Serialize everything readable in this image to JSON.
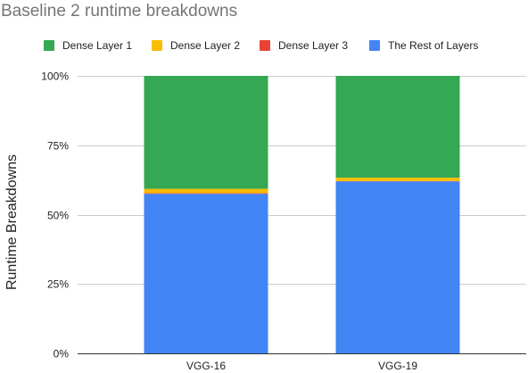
{
  "chart_data": {
    "type": "bar",
    "stacked": true,
    "title": "Baseline 2 runtime breakdowns",
    "xlabel": "",
    "ylabel": "Runtime Breakdowns",
    "categories": [
      "VGG-16",
      "VGG-19"
    ],
    "ylim": [
      0,
      100
    ],
    "yticks": [
      "0%",
      "25%",
      "50%",
      "75%",
      "100%"
    ],
    "grid": true,
    "legend_position": "top",
    "series": [
      {
        "name": "The Rest of Layers",
        "color": "#4285f4",
        "values": [
          57.5,
          62.0
        ]
      },
      {
        "name": "Dense Layer 3",
        "color": "#ea4335",
        "values": [
          0.2,
          0.1
        ]
      },
      {
        "name": "Dense Layer 2",
        "color": "#fbbc04",
        "values": [
          1.6,
          1.2
        ]
      },
      {
        "name": "Dense Layer 1",
        "color": "#34a853",
        "values": [
          40.7,
          36.7
        ]
      }
    ],
    "legend_order": [
      "Dense Layer 1",
      "Dense Layer 2",
      "Dense Layer 3",
      "The Rest of Layers"
    ]
  }
}
